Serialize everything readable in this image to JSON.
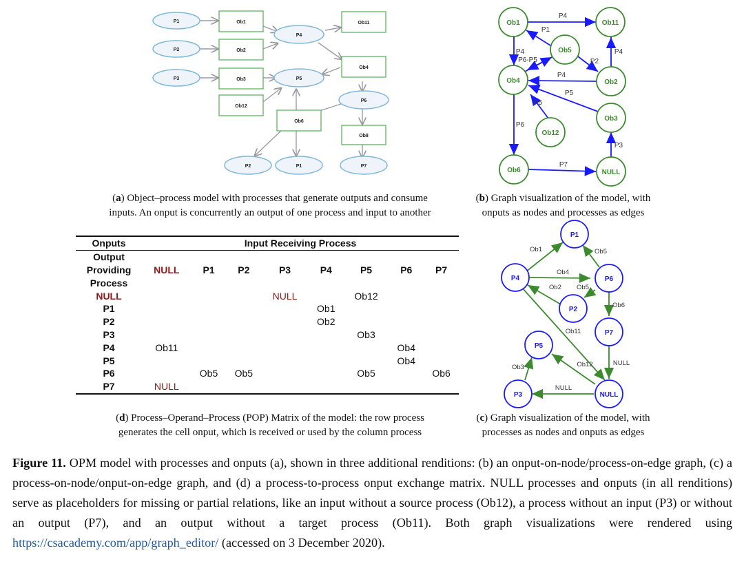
{
  "panel_a": {
    "nodes": {
      "p1": "P1",
      "p2": "P2",
      "p3": "P3",
      "p4": "P4",
      "p5": "P5",
      "p6": "P6",
      "p2b": "P2",
      "p1b": "P1",
      "p7": "P7",
      "ob1": "Ob1",
      "ob2": "Ob2",
      "ob3": "Ob3",
      "ob12": "Ob12",
      "ob11": "Ob11",
      "ob4": "Ob4",
      "ob6": "Ob6",
      "ob8": "Ob8"
    },
    "caption_label": "a",
    "caption_line1": " Object–process model with processes that generate outputs and consume",
    "caption_line2": "inputs. An onput is concurrently an output of one process and input to another"
  },
  "panel_b": {
    "nodes": {
      "ob1": "Ob1",
      "ob11": "Ob11",
      "ob5": "Ob5",
      "ob4": "Ob4",
      "ob2": "Ob2",
      "ob12": "Ob12",
      "ob3": "Ob3",
      "ob6": "Ob6",
      "null": "NULL"
    },
    "edges": {
      "e_ob1_ob11": "P4",
      "e_ob5_ob1": "P1",
      "e_ob1_ob4": "P4",
      "e_ob4_ob5": "P6-P5",
      "e_ob5_ob2": "P2",
      "e_ob2_ob11": "P4",
      "e_ob2_ob4": "P4",
      "e_ob3_ob4": "P5",
      "e_ob12_ob4": "P5",
      "e_ob4_ob6": "P6",
      "e_ob6_null": "P7",
      "e_null_ob3": "P3"
    },
    "caption_label": "b",
    "caption_line1": " Graph visualization of the model, with",
    "caption_line2": "onputs as nodes and processes as edges"
  },
  "panel_c": {
    "nodes": {
      "p1": "P1",
      "p4": "P4",
      "p6": "P6",
      "p2": "P2",
      "p7": "P7",
      "p5": "P5",
      "p3": "P3",
      "null": "NULL"
    },
    "edges": {
      "e_p4_p1": "Ob1",
      "e_p6_p1": "Ob5",
      "e_p4_p6": "Ob4",
      "e_p2_p4": "Ob2",
      "e_p6_p2": "Ob5",
      "e_p6_p7": "Ob6",
      "e_p4_null": "Ob11",
      "e_p7_null": "NULL",
      "e_null_p5": "Ob12",
      "e_p3_p5": "Ob3",
      "e_null_p3": "NULL"
    },
    "caption_label": "c",
    "caption_line1": " Graph visualization of the model, with",
    "caption_line2": "processes as nodes and onputs as edges"
  },
  "panel_d": {
    "header_left": "Onputs",
    "header_right": "Input Receiving Process",
    "row_header_lines": [
      "Output",
      "Providing",
      "Process"
    ],
    "columns": [
      "NULL",
      "P1",
      "P2",
      "P3",
      "P4",
      "P5",
      "P6",
      "P7"
    ],
    "rows": [
      {
        "label": "NULL",
        "cells": [
          "",
          "",
          "",
          "NULL",
          "",
          "Ob12",
          "",
          ""
        ]
      },
      {
        "label": "P1",
        "cells": [
          "",
          "",
          "",
          "",
          "Ob1",
          "",
          "",
          ""
        ]
      },
      {
        "label": "P2",
        "cells": [
          "",
          "",
          "",
          "",
          "Ob2",
          "",
          "",
          ""
        ]
      },
      {
        "label": "P3",
        "cells": [
          "",
          "",
          "",
          "",
          "",
          "Ob3",
          "",
          ""
        ]
      },
      {
        "label": "P4",
        "cells": [
          "Ob11",
          "",
          "",
          "",
          "",
          "",
          "Ob4",
          ""
        ]
      },
      {
        "label": "P5",
        "cells": [
          "",
          "",
          "",
          "",
          "",
          "",
          "Ob4",
          ""
        ]
      },
      {
        "label": "P6",
        "cells": [
          "",
          "Ob5",
          "Ob5",
          "",
          "",
          "Ob5",
          "",
          "Ob6"
        ]
      },
      {
        "label": "P7",
        "cells": [
          "NULL",
          "",
          "",
          "",
          "",
          "",
          "",
          ""
        ]
      }
    ],
    "caption_label": "d",
    "caption_line1": " Process–Operand–Process (POP) Matrix of the model: the row process",
    "caption_line2": "generates the cell onput, which is received or used by the column process"
  },
  "figure_caption": {
    "label": "Figure 11.",
    "text_before_link": " OPM model with processes and onputs (a), shown in three additional renditions: (b) an onput-on-node/process-on-edge graph, (c) a process-on-node/onput-on-edge graph, and (d) a process-to-process onput exchange matrix. NULL processes and onputs (in all renditions) serve as placeholders for missing or partial relations, like an input without a source process (Ob12), a process without an input (P3) or without an output (P7), and an output without a target process (Ob11). Both graph visualizations were rendered using ",
    "link": "https://csacademy.com/app/graph_editor/",
    "text_after_link": " (accessed on 3 December 2020)."
  },
  "colors": {
    "green": "#3c8a2e",
    "blue": "#1a1aff",
    "red": "#8b1a1a",
    "link": "#1f5aa8"
  }
}
